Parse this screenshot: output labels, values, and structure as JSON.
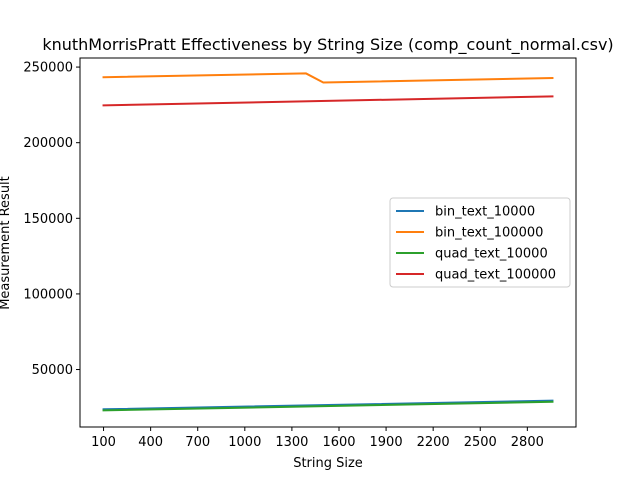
{
  "chart_data": {
    "type": "line",
    "title": "knuthMorrisPratt Effectiveness by String Size (comp_count_normal.csv)",
    "xlabel": "String Size",
    "ylabel": "Measurement Result",
    "xticks": [
      100,
      400,
      700,
      1000,
      1300,
      1600,
      1900,
      2200,
      2500,
      2800
    ],
    "yticks": [
      50000,
      100000,
      150000,
      200000,
      250000
    ],
    "xlim": [
      -50,
      3110
    ],
    "ylim": [
      12000,
      256000
    ],
    "grid": false,
    "legend_position": "center-right",
    "series": [
      {
        "name": "bin_text_10000",
        "color": "#1f77b4",
        "points": [
          [
            100,
            23700
          ],
          [
            2960,
            29400
          ]
        ]
      },
      {
        "name": "bin_text_100000",
        "color": "#ff7f0e",
        "points": [
          [
            100,
            243300
          ],
          [
            1390,
            245800
          ],
          [
            1500,
            239800
          ],
          [
            2960,
            242800
          ]
        ]
      },
      {
        "name": "quad_text_10000",
        "color": "#2ca02c",
        "points": [
          [
            100,
            23000
          ],
          [
            2960,
            28700
          ]
        ]
      },
      {
        "name": "quad_text_100000",
        "color": "#d62728",
        "points": [
          [
            100,
            224700
          ],
          [
            2960,
            230600
          ]
        ]
      }
    ]
  }
}
